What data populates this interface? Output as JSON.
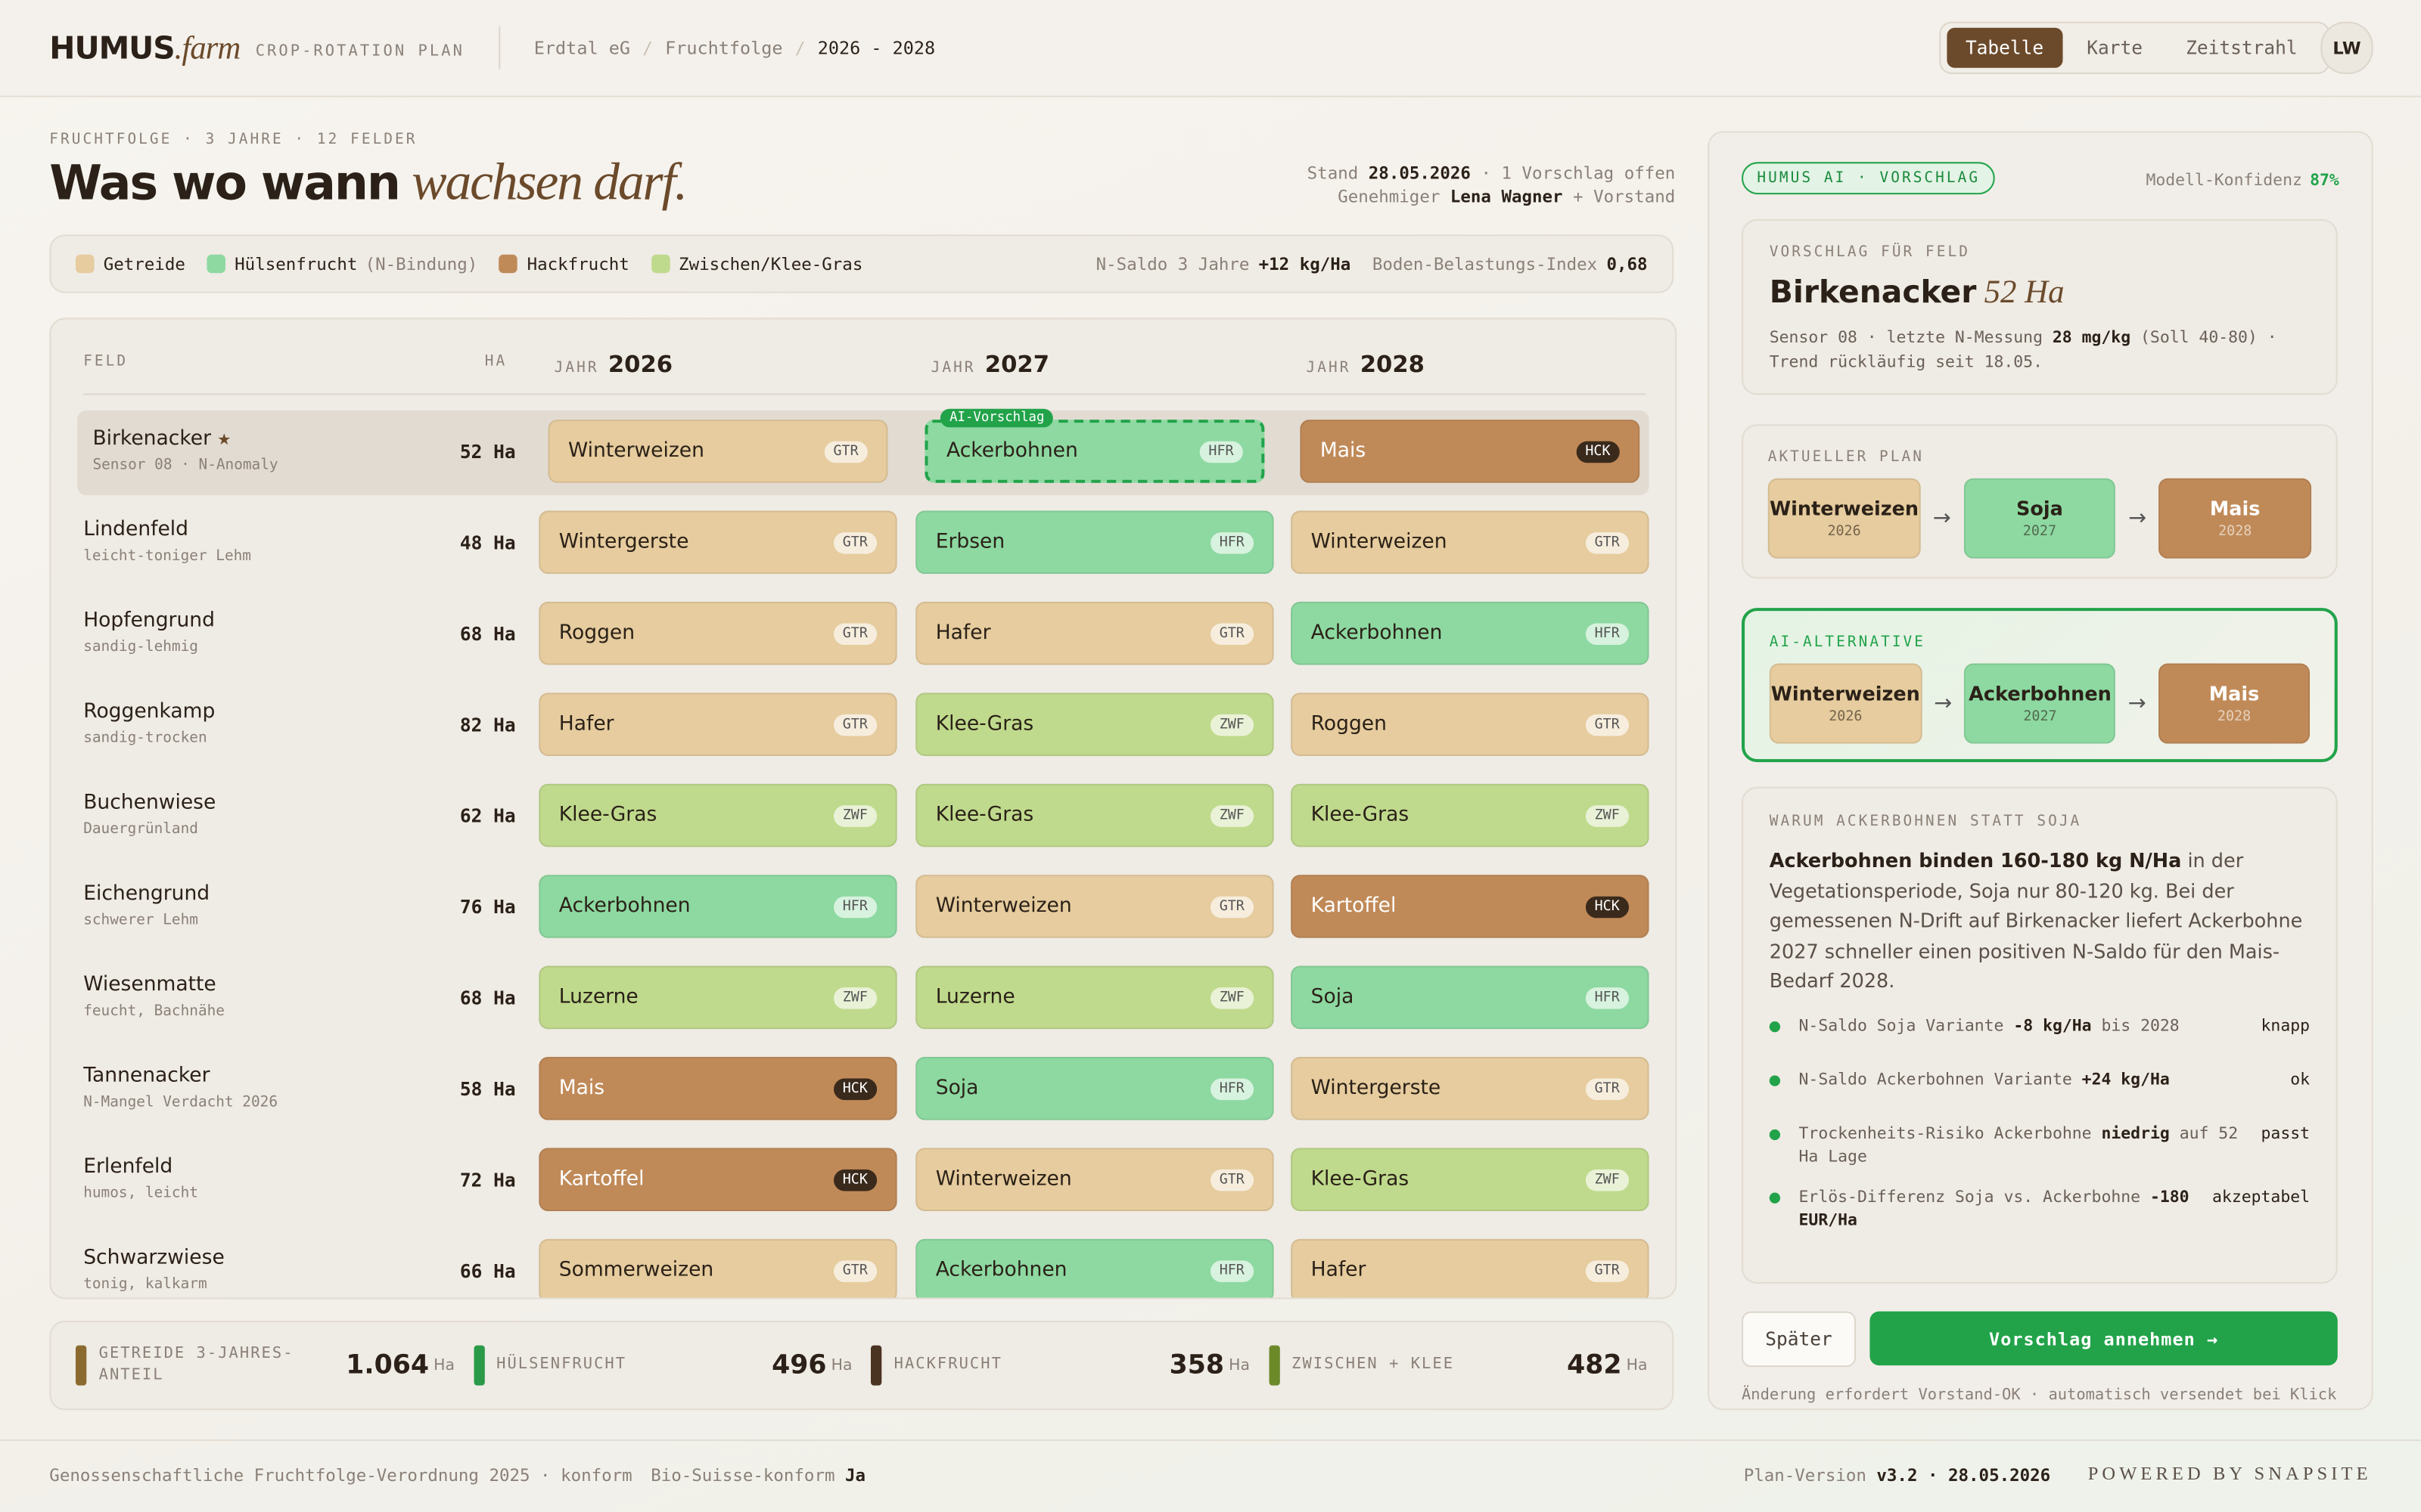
{
  "header": {
    "brand": "HUMUS",
    "brand_italic": ".farm",
    "subtitle": "CROP-ROTATION PLAN",
    "separator": "/",
    "breadcrumb": [
      "Erdtal eG",
      "Fruchtfolge",
      "2026 - 2028"
    ],
    "tabs": [
      "Tabelle",
      "Karte",
      "Zeitstrahl"
    ],
    "active_tab": 0,
    "avatar": "LW"
  },
  "intro": {
    "eyebrow": "FRUCHTFOLGE · 3 JAHRE · 12 FELDER",
    "title": "Was wo wann",
    "title_italic": "wachsen darf.",
    "meta": [
      [
        {
          "t": "Stand ",
          "b": false
        },
        {
          "t": "28.05.2026",
          "b": true
        },
        {
          "t": " · 1 Vorschlag offen",
          "b": false
        }
      ],
      [
        {
          "t": "Genehmiger ",
          "b": false
        },
        {
          "t": "Lena Wagner",
          "b": true
        },
        {
          "t": " + Vorstand",
          "b": false
        }
      ]
    ]
  },
  "legend": {
    "items": [
      {
        "label": "Getreide",
        "note": null,
        "tag": "GTR"
      },
      {
        "label": "Hülsenfrucht",
        "note": "(N-Bindung)",
        "tag": "HFR"
      },
      {
        "label": "Hackfrucht",
        "note": null,
        "tag": "HCK"
      },
      {
        "label": "Zwischen/Klee-Gras",
        "note": null,
        "tag": "ZWF"
      }
    ],
    "stats": [
      {
        "label": "N-Saldo 3 Jahre",
        "value": "+12 kg/Ha"
      },
      {
        "label": "Boden-Belastungs-Index",
        "value": "0,68"
      }
    ]
  },
  "crop_colors": {
    "GTR": "#e6cc9e",
    "HFR": "#8dd9a1",
    "HCK": "#c08a58",
    "ZWF": "#bfda8c"
  },
  "table": {
    "col_field": "FELD",
    "col_ha": "HA",
    "year_prefix": "JAHR",
    "years": [
      "2026",
      "2027",
      "2028"
    ],
    "ai_badge": "AI-Vorschlag",
    "rows": [
      {
        "name": "Birkenacker",
        "mark": "★",
        "sub": "Sensor 08 · N-Anomaly",
        "ha": "52 Ha",
        "highlight": true,
        "cells": [
          {
            "crop": "Winterweizen",
            "tag": "GTR"
          },
          {
            "crop": "Ackerbohnen",
            "tag": "HFR",
            "ai": true
          },
          {
            "crop": "Mais",
            "tag": "HCK"
          }
        ]
      },
      {
        "name": "Lindenfeld",
        "sub": "leicht-toniger Lehm",
        "ha": "48 Ha",
        "cells": [
          {
            "crop": "Wintergerste",
            "tag": "GTR"
          },
          {
            "crop": "Erbsen",
            "tag": "HFR"
          },
          {
            "crop": "Winterweizen",
            "tag": "GTR"
          }
        ]
      },
      {
        "name": "Hopfengrund",
        "sub": "sandig-lehmig",
        "ha": "68 Ha",
        "cells": [
          {
            "crop": "Roggen",
            "tag": "GTR"
          },
          {
            "crop": "Hafer",
            "tag": "GTR"
          },
          {
            "crop": "Ackerbohnen",
            "tag": "HFR"
          }
        ]
      },
      {
        "name": "Roggenkamp",
        "sub": "sandig-trocken",
        "ha": "82 Ha",
        "cells": [
          {
            "crop": "Hafer",
            "tag": "GTR"
          },
          {
            "crop": "Klee-Gras",
            "tag": "ZWF"
          },
          {
            "crop": "Roggen",
            "tag": "GTR"
          }
        ]
      },
      {
        "name": "Buchenwiese",
        "sub": "Dauergrünland",
        "ha": "62 Ha",
        "cells": [
          {
            "crop": "Klee-Gras",
            "tag": "ZWF"
          },
          {
            "crop": "Klee-Gras",
            "tag": "ZWF"
          },
          {
            "crop": "Klee-Gras",
            "tag": "ZWF"
          }
        ]
      },
      {
        "name": "Eichengrund",
        "sub": "schwerer Lehm",
        "ha": "76 Ha",
        "cells": [
          {
            "crop": "Ackerbohnen",
            "tag": "HFR"
          },
          {
            "crop": "Winterweizen",
            "tag": "GTR"
          },
          {
            "crop": "Kartoffel",
            "tag": "HCK"
          }
        ]
      },
      {
        "name": "Wiesenmatte",
        "sub": "feucht, Bachnähe",
        "ha": "68 Ha",
        "cells": [
          {
            "crop": "Luzerne",
            "tag": "ZWF"
          },
          {
            "crop": "Luzerne",
            "tag": "ZWF"
          },
          {
            "crop": "Soja",
            "tag": "HFR"
          }
        ]
      },
      {
        "name": "Tannenacker",
        "sub": "N-Mangel Verdacht 2026",
        "ha": "58 Ha",
        "cells": [
          {
            "crop": "Mais",
            "tag": "HCK"
          },
          {
            "crop": "Soja",
            "tag": "HFR"
          },
          {
            "crop": "Wintergerste",
            "tag": "GTR"
          }
        ]
      },
      {
        "name": "Erlenfeld",
        "sub": "humos, leicht",
        "ha": "72 Ha",
        "cells": [
          {
            "crop": "Kartoffel",
            "tag": "HCK"
          },
          {
            "crop": "Winterweizen",
            "tag": "GTR"
          },
          {
            "crop": "Klee-Gras",
            "tag": "ZWF"
          }
        ]
      },
      {
        "name": "Schwarzwiese",
        "sub": "tonig, kalkarm",
        "ha": "66 Ha",
        "cells": [
          {
            "crop": "Sommerweizen",
            "tag": "GTR"
          },
          {
            "crop": "Ackerbohnen",
            "tag": "HFR"
          },
          {
            "crop": "Hafer",
            "tag": "GTR"
          }
        ]
      }
    ]
  },
  "summary": [
    {
      "label": "GETREIDE 3-JAHRES-ANTEIL",
      "value": "1.064",
      "unit": "Ha",
      "color": "#8a6a2e"
    },
    {
      "label": "HÜLSENFRUCHT",
      "value": "496",
      "unit": "Ha",
      "color": "#2a9a48"
    },
    {
      "label": "HACKFRUCHT",
      "value": "358",
      "unit": "Ha",
      "color": "#4a3320"
    },
    {
      "label": "ZWISCHEN + KLEE",
      "value": "482",
      "unit": "Ha",
      "color": "#6d8a2a"
    }
  ],
  "panel": {
    "badge": "HUMUS AI · VORSCHLAG",
    "confidence_label": "Modell-Konfidenz",
    "confidence": "87%",
    "field": {
      "eyebrow": "VORSCHLAG FÜR FELD",
      "title": "Birkenacker",
      "title_italic": "52 Ha",
      "text": [
        {
          "t": "Sensor 08 · letzte N-Messung ",
          "b": false
        },
        {
          "t": "28 mg/kg",
          "b": true
        },
        {
          "t": " (Soll 40-80) · Trend rückläufig seit 18.05.",
          "b": false
        }
      ]
    },
    "arrow": "→",
    "current": {
      "eyebrow": "AKTUELLER PLAN",
      "steps": [
        {
          "crop": "Winterweizen",
          "year": "2026",
          "tag": "GTR"
        },
        {
          "crop": "Soja",
          "year": "2027",
          "tag": "HFR"
        },
        {
          "crop": "Mais",
          "year": "2028",
          "tag": "HCK"
        }
      ]
    },
    "alternative": {
      "eyebrow": "AI-ALTERNATIVE",
      "steps": [
        {
          "crop": "Winterweizen",
          "year": "2026",
          "tag": "GTR"
        },
        {
          "crop": "Ackerbohnen",
          "year": "2027",
          "tag": "HFR"
        },
        {
          "crop": "Mais",
          "year": "2028",
          "tag": "HCK"
        }
      ]
    },
    "reason": {
      "eyebrow": "WARUM ACKERBOHNEN STATT SOJA",
      "text": [
        {
          "t": "Ackerbohnen binden 160-180 kg N/Ha",
          "b": true
        },
        {
          "t": " in der Vegetationsperiode, Soja nur 80-120 kg. Bei der gemessenen N-Drift auf Birkenacker liefert Ackerbohne 2027 schneller einen positiven N-Saldo für den Mais-Bedarf 2028.",
          "b": false
        }
      ],
      "items": [
        {
          "text": [
            {
              "t": "N-Saldo Soja Variante ",
              "b": false
            },
            {
              "t": "-8 kg/Ha",
              "b": true
            },
            {
              "t": " bis 2028",
              "b": false
            }
          ],
          "status": "knapp"
        },
        {
          "text": [
            {
              "t": "N-Saldo Ackerbohnen Variante ",
              "b": false
            },
            {
              "t": "+24 kg/Ha",
              "b": true
            }
          ],
          "status": "ok"
        },
        {
          "text": [
            {
              "t": "Trockenheits-Risiko Ackerbohne ",
              "b": false
            },
            {
              "t": "niedrig",
              "b": true
            },
            {
              "t": " auf 52 Ha Lage",
              "b": false
            }
          ],
          "status": "passt"
        },
        {
          "text": [
            {
              "t": "Erlös-Differenz Soja vs. Ackerbohne ",
              "b": false
            },
            {
              "t": "-180 EUR/Ha",
              "b": true
            }
          ],
          "status": "akzeptabel"
        }
      ]
    },
    "later": "Später",
    "accept": "Vorschlag annehmen →",
    "footnote": "Änderung erfordert Vorstand-OK · automatisch versendet bei Klick"
  },
  "footer": {
    "left": [
      [
        {
          "t": "Genossenschaftliche Fruchtfolge-Verordnung 2025 · konform",
          "b": false
        }
      ],
      [
        {
          "t": "Bio-Suisse-konform ",
          "b": false
        },
        {
          "t": "Ja",
          "b": true
        }
      ]
    ],
    "right": [
      {
        "t": "Plan-Version ",
        "b": false
      },
      {
        "t": "v3.2 · 28.05.2026",
        "b": true
      }
    ],
    "powered": "POWERED BY SNAPSITE"
  }
}
